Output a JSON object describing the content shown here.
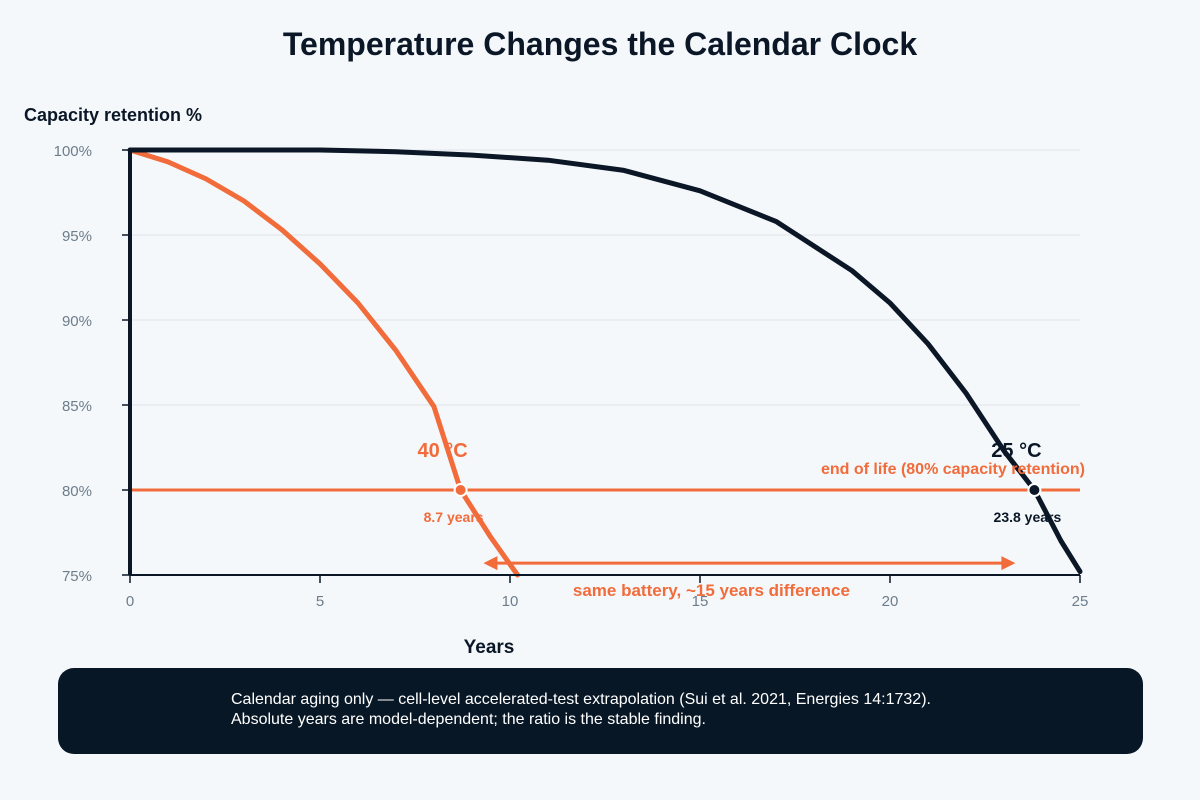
{
  "chart_data": {
    "type": "line",
    "title": "Temperature Changes the Calendar Clock",
    "xlabel": "Years",
    "ylabel": "Capacity retention %",
    "xlim": [
      0,
      25
    ],
    "ylim": [
      75,
      100
    ],
    "x_ticks": [
      "0",
      "5",
      "10",
      "15",
      "20",
      "25"
    ],
    "y_ticks": [
      "100%",
      "95%",
      "90%",
      "85%",
      "80%",
      "75%"
    ],
    "grid": "horizontal",
    "series": [
      {
        "name": "40 °C",
        "color": "#f26b3a",
        "points": [
          [
            0,
            100
          ],
          [
            1,
            99.3
          ],
          [
            2,
            98.3
          ],
          [
            3,
            97
          ],
          [
            4,
            95.3
          ],
          [
            5,
            93.3
          ],
          [
            6,
            91
          ],
          [
            7,
            88.2
          ],
          [
            8,
            84.9
          ],
          [
            8.7,
            80
          ],
          [
            9.5,
            77.2
          ],
          [
            10.2,
            75
          ]
        ]
      },
      {
        "name": "25 °C",
        "color": "#0b1726",
        "points": [
          [
            0,
            100
          ],
          [
            5,
            100
          ],
          [
            7,
            99.9
          ],
          [
            9,
            99.7
          ],
          [
            11,
            99.4
          ],
          [
            13,
            98.8
          ],
          [
            15,
            97.6
          ],
          [
            17,
            95.8
          ],
          [
            19,
            92.9
          ],
          [
            20,
            91
          ],
          [
            21,
            88.6
          ],
          [
            22,
            85.7
          ],
          [
            23,
            82.3
          ],
          [
            23.8,
            80
          ],
          [
            24.5,
            77
          ],
          [
            25,
            75.2
          ]
        ]
      }
    ],
    "threshold": {
      "value": 80,
      "label": "end of life (80% capacity retention)",
      "color": "#f26b3a"
    },
    "markers": [
      {
        "x": 8.7,
        "y": 80,
        "label": "8.7 years",
        "color": "#f26b3a"
      },
      {
        "x": 23.8,
        "y": 80,
        "label": "23.8 years",
        "color": "#0b1726"
      }
    ],
    "difference_arrow": {
      "from": 9.3,
      "to": 23.3,
      "y": 75.7,
      "label": "same battery, ~15 years difference",
      "color": "#f26b3a"
    }
  },
  "footnote": {
    "line1": "Calendar aging only — cell-level accelerated-test extrapolation (Sui et al. 2021, Energies 14:1732).",
    "line2": "Absolute years are model-dependent; the ratio is the stable finding."
  }
}
